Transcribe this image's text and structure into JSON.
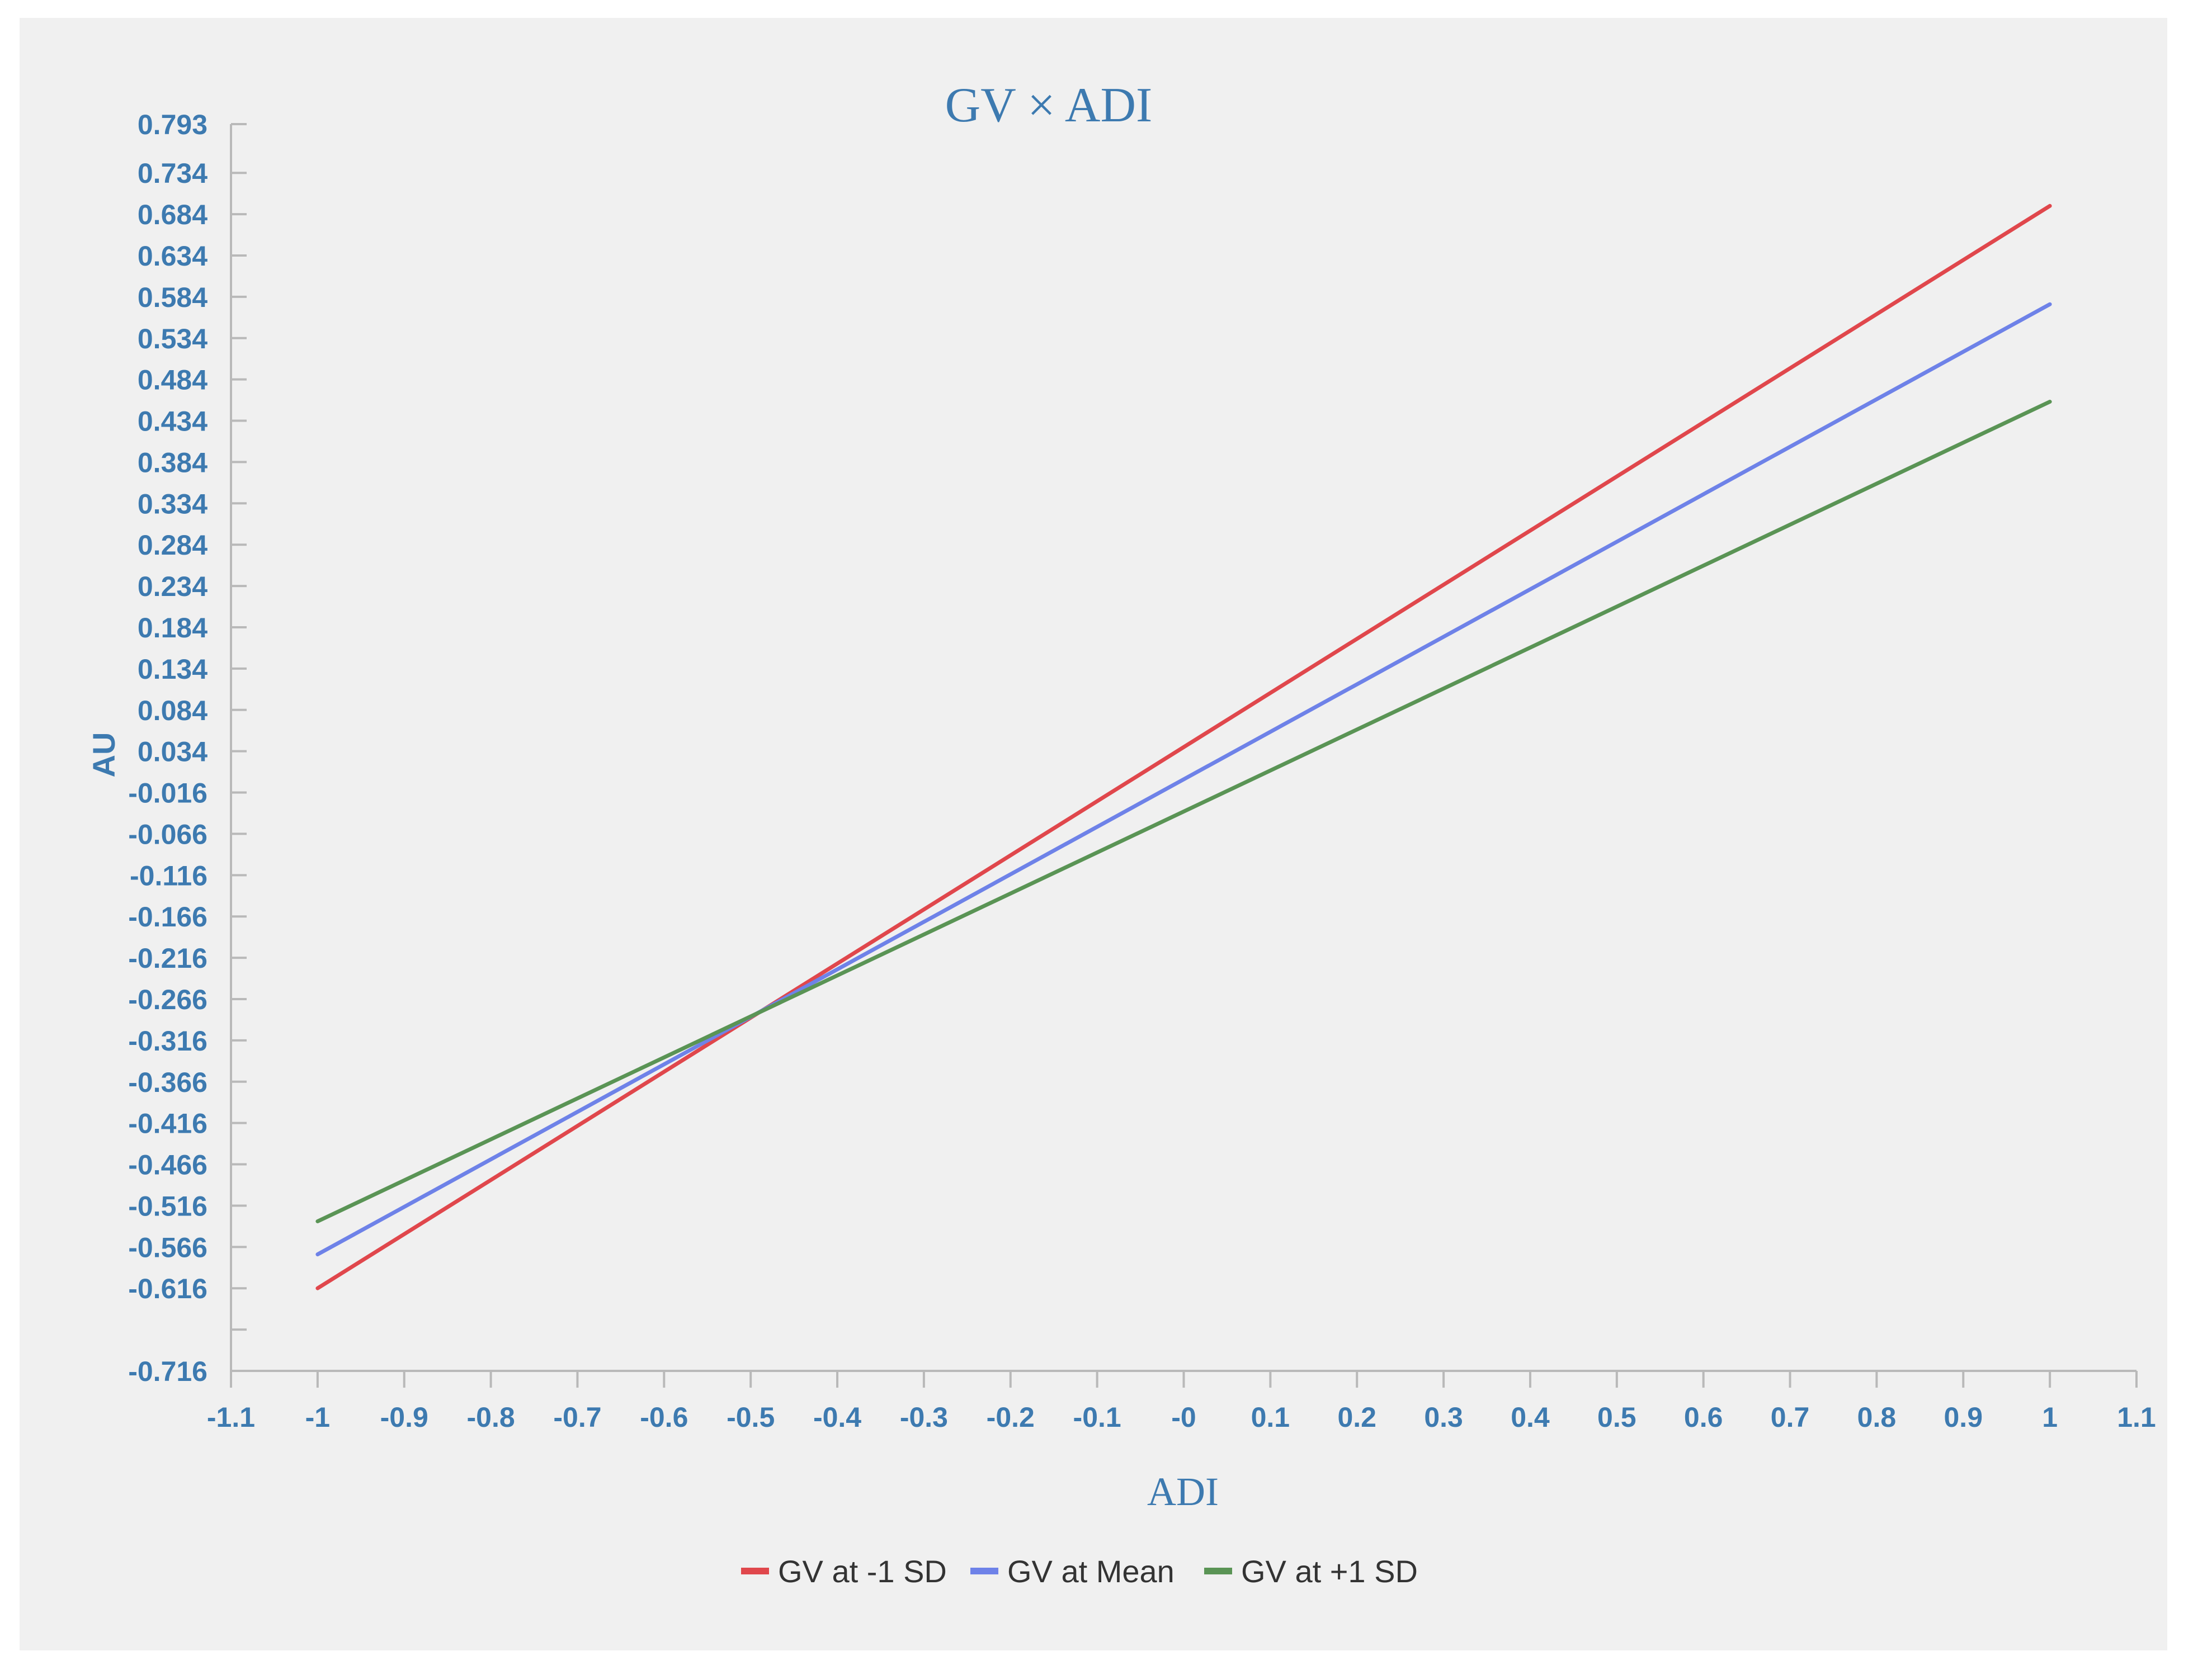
{
  "chart_data": {
    "type": "line",
    "title": "GV × ADI",
    "xlabel": "ADI",
    "ylabel": "AU",
    "xlim": [
      -1.1,
      1.1
    ],
    "ylim": [
      -0.716,
      0.793
    ],
    "x_ticks": [
      "-1.1",
      "-1",
      "-0.9",
      "-0.8",
      "-0.7",
      "-0.6",
      "-0.5",
      "-0.4",
      "-0.3",
      "-0.2",
      "-0.1",
      "-0",
      "0.1",
      "0.2",
      "0.3",
      "0.4",
      "0.5",
      "0.6",
      "0.7",
      "0.8",
      "0.9",
      "1",
      "1.1"
    ],
    "x_tick_values": [
      -1.1,
      -1,
      -0.9,
      -0.8,
      -0.7,
      -0.6,
      -0.5,
      -0.4,
      -0.3,
      -0.2,
      -0.1,
      0,
      0.1,
      0.2,
      0.3,
      0.4,
      0.5,
      0.6,
      0.7,
      0.8,
      0.9,
      1,
      1.1
    ],
    "y_ticks": [
      "0.793",
      "0.734",
      "0.684",
      "0.634",
      "0.584",
      "0.534",
      "0.484",
      "0.434",
      "0.384",
      "0.334",
      "0.284",
      "0.234",
      "0.184",
      "0.134",
      "0.084",
      "0.034",
      "-0.016",
      "-0.066",
      "-0.116",
      "-0.166",
      "-0.216",
      "-0.266",
      "-0.316",
      "-0.366",
      "-0.416",
      "-0.466",
      "-0.516",
      "-0.566",
      "-0.616",
      "-0.716"
    ],
    "y_tick_values": [
      0.793,
      0.734,
      0.684,
      0.634,
      0.584,
      0.534,
      0.484,
      0.434,
      0.384,
      0.334,
      0.284,
      0.234,
      0.184,
      0.134,
      0.084,
      0.034,
      -0.016,
      -0.066,
      -0.116,
      -0.166,
      -0.216,
      -0.266,
      -0.316,
      -0.366,
      -0.416,
      -0.466,
      -0.516,
      -0.566,
      -0.616,
      -0.716
    ],
    "y_minor_ticks": [
      -0.666
    ],
    "grid": false,
    "legend_position": "bottom-center",
    "series": [
      {
        "name": "GV at -1 SD",
        "color": "#e0474c",
        "x": [
          -1,
          1
        ],
        "y": [
          -0.616,
          0.694
        ]
      },
      {
        "name": "GV at Mean",
        "color": "#6e82e8",
        "x": [
          -1,
          1
        ],
        "y": [
          -0.575,
          0.575
        ]
      },
      {
        "name": "GV at +1 SD",
        "color": "#5a9455",
        "x": [
          -1,
          1
        ],
        "y": [
          -0.535,
          0.457
        ]
      }
    ]
  }
}
